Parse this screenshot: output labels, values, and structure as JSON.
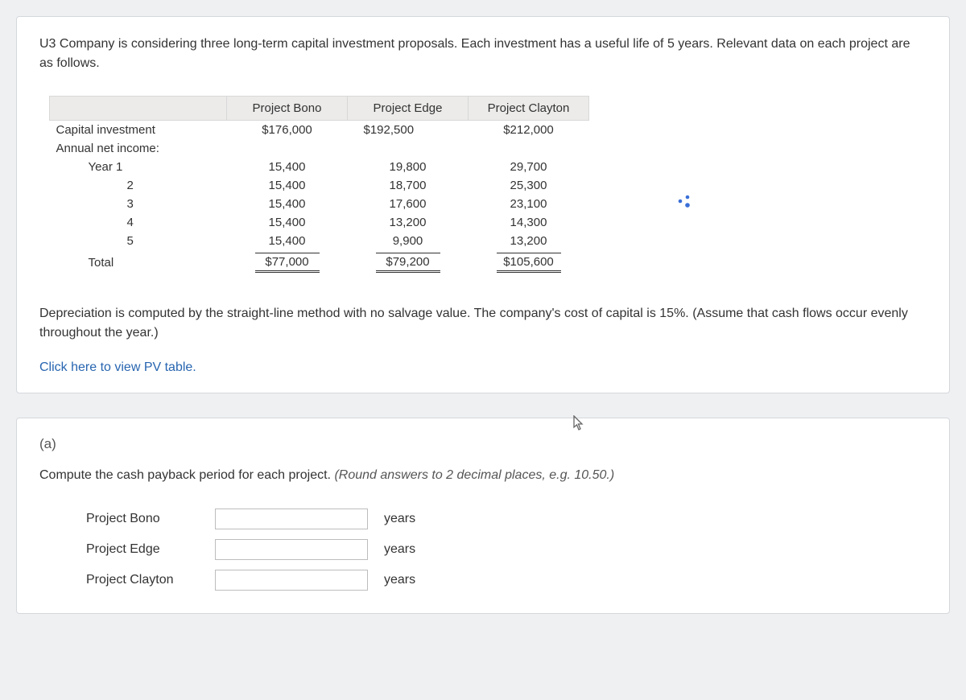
{
  "intro": "U3 Company is considering three long-term capital investment proposals. Each investment has a useful life of 5 years. Relevant data on each project are as follows.",
  "table": {
    "headers": [
      "Project Bono",
      "Project Edge",
      "Project Clayton"
    ],
    "rows": [
      {
        "label": "Capital investment",
        "vals": [
          "$176,000",
          "$192,500",
          "$212,000"
        ],
        "indent": 0,
        "align": [
          "center",
          "left",
          "center"
        ]
      },
      {
        "label": "Annual net income:",
        "vals": [
          "",
          "",
          ""
        ],
        "indent": 0
      },
      {
        "label": "Year  1",
        "vals": [
          "15,400",
          "19,800",
          "29,700"
        ],
        "indent": 1
      },
      {
        "label": "2",
        "vals": [
          "15,400",
          "18,700",
          "25,300"
        ],
        "indent": 2
      },
      {
        "label": "3",
        "vals": [
          "15,400",
          "17,600",
          "23,100"
        ],
        "indent": 2
      },
      {
        "label": "4",
        "vals": [
          "15,400",
          "13,200",
          "14,300"
        ],
        "indent": 2
      },
      {
        "label": "5",
        "vals": [
          "15,400",
          "9,900",
          "13,200"
        ],
        "indent": 2
      },
      {
        "label": "Total",
        "vals": [
          "$77,000",
          "$79,200",
          "$105,600"
        ],
        "indent": 1,
        "total": true
      }
    ]
  },
  "dep_text": "Depreciation is computed by the straight-line method with no salvage value. The company's cost of capital is 15%. (Assume that cash flows occur evenly throughout the year.)",
  "link_text": "Click here to view PV table.",
  "part_label": "(a)",
  "instruction_main": "Compute the cash payback period for each project. ",
  "instruction_hint": "(Round answers to 2 decimal places, e.g. 10.50.)",
  "answers": [
    {
      "label": "Project Bono",
      "unit": "years"
    },
    {
      "label": "Project Edge",
      "unit": "years"
    },
    {
      "label": "Project Clayton",
      "unit": "years"
    }
  ],
  "colors": {
    "page_bg": "#eef0f2",
    "card_bg": "#ffffff",
    "border": "#d5d8dc",
    "header_bg": "#ecebea",
    "link": "#2765b0",
    "text": "#333333",
    "hint": "#555555"
  }
}
